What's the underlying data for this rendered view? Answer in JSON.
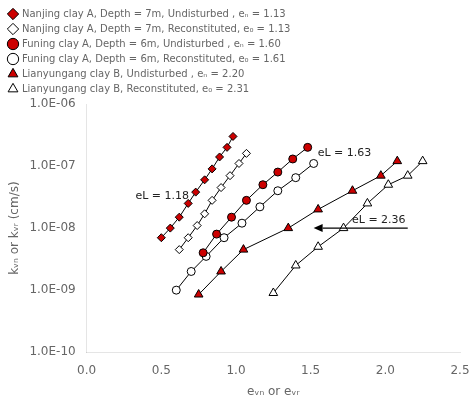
{
  "chart_data": {
    "type": "line",
    "xlabel": "eᵥₙ or eᵥᵣ",
    "ylabel": "kᵥₙ or kᵥᵣ (cm/s)",
    "xlim": [
      0.0,
      2.5
    ],
    "xticks": [
      {
        "value": 0.0,
        "label": "0.0"
      },
      0.5,
      {
        "value": 1.0,
        "label": "1.0"
      },
      1.5,
      {
        "value": 2.0,
        "label": "2.0"
      },
      2.5
    ],
    "ylim": [
      1e-10,
      1e-06
    ],
    "yticks": [
      {
        "value": 1e-10,
        "label": "1.0E-10"
      },
      {
        "value": 1e-09,
        "label": "1.0E-09"
      },
      {
        "value": 1e-08,
        "label": "1.0E-08"
      },
      {
        "value": 1e-07,
        "label": "1.0E-07"
      },
      {
        "value": 1e-06,
        "label": "1.0E-06"
      }
    ],
    "log": "y",
    "grid": false,
    "legend": "upper left",
    "series": [
      {
        "name": "Nanjing clay A, Depth = 7m, Undisturbed , eₙ = 1.13",
        "color": "#cc0000",
        "marker": "diamond",
        "x": [
          0.5,
          0.56,
          0.62,
          0.68,
          0.73,
          0.79,
          0.84,
          0.89,
          0.94,
          0.98
        ],
        "values": [
          7e-09,
          1e-08,
          1.5e-08,
          2.5e-08,
          3.8e-08,
          6e-08,
          9e-08,
          1.4e-07,
          2e-07,
          3e-07
        ]
      },
      {
        "name": "Nanjing clay A, Depth = 7m, Reconstituted, e₀ = 1.13",
        "color": "white",
        "marker": "diamond",
        "x": [
          0.62,
          0.68,
          0.74,
          0.79,
          0.84,
          0.9,
          0.96,
          1.02,
          1.07
        ],
        "values": [
          4.5e-09,
          7e-09,
          1.1e-08,
          1.7e-08,
          2.8e-08,
          4.5e-08,
          7e-08,
          1.1e-07,
          1.6e-07
        ]
      },
      {
        "name": "Funing clay A, Depth = 6m, Undisturbed , eₙ = 1.60",
        "color": "#cc0000",
        "marker": "circle",
        "x": [
          0.78,
          0.87,
          0.97,
          1.07,
          1.18,
          1.28,
          1.38,
          1.48
        ],
        "values": [
          4e-09,
          8e-09,
          1.5e-08,
          2.8e-08,
          5e-08,
          8e-08,
          1.3e-07,
          2e-07
        ]
      },
      {
        "name": "Funing clay A, Depth = 6m, Reconstituted, e₀ = 1.61",
        "color": "white",
        "marker": "circle",
        "x": [
          0.6,
          0.7,
          0.8,
          0.92,
          1.04,
          1.16,
          1.28,
          1.4,
          1.52
        ],
        "values": [
          1e-09,
          2e-09,
          3.5e-09,
          7e-09,
          1.2e-08,
          2.2e-08,
          4e-08,
          6.5e-08,
          1.1e-07
        ]
      },
      {
        "name": "Lianyungang clay B, Undisturbed , eₙ = 2.20",
        "color": "#cc0000",
        "marker": "triangle",
        "x": [
          0.75,
          0.9,
          1.05,
          1.35,
          1.55,
          1.78,
          1.97,
          2.08
        ],
        "values": [
          8.5e-10,
          2e-09,
          4.5e-09,
          1e-08,
          2e-08,
          4e-08,
          7e-08,
          1.2e-07
        ]
      },
      {
        "name": "Lianyungang clay B, Reconstituted, e₀ = 2.31",
        "color": "white",
        "marker": "triangle",
        "x": [
          1.25,
          1.4,
          1.55,
          1.72,
          1.88,
          2.02,
          2.15,
          2.25
        ],
        "values": [
          9e-10,
          2.5e-09,
          5e-09,
          1e-08,
          2.5e-08,
          5e-08,
          7e-08,
          1.2e-07
        ]
      }
    ],
    "annotations": [
      {
        "text": "eL = 1.18",
        "x": 0.3,
        "y": 2.5e-08
      },
      {
        "text": "eL = 1.63",
        "x": 1.52,
        "y": 1.2e-07
      },
      {
        "text": "eL = 2.36",
        "x": 1.75,
        "y": 1e-08
      }
    ],
    "arrows": [
      {
        "x_start": 2.15,
        "y_start": 1e-08,
        "x_end": 1.52,
        "y_end": 1e-08
      }
    ]
  }
}
